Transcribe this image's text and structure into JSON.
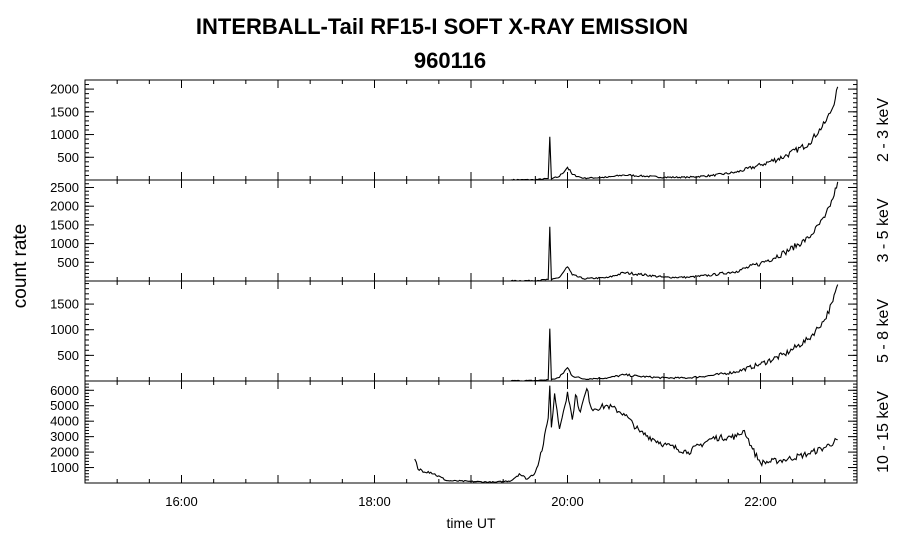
{
  "chart_data": {
    "type": "line",
    "title": "INTERBALL-Tail RF15-I SOFT X-RAY EMISSION",
    "subtitle": "960116",
    "xlabel": "time UT",
    "ylabel": "count rate",
    "xlim": [
      "15:00",
      "23:00"
    ],
    "x_ticks": [
      "16:00",
      "18:00",
      "20:00",
      "22:00"
    ],
    "grid": false,
    "series": [
      {
        "name": "2 - 3 keV",
        "ylim": [
          0,
          2200
        ],
        "y_ticks": [
          500,
          1000,
          1500,
          2000
        ],
        "points": [
          [
            "19:25",
            5
          ],
          [
            "19:40",
            8
          ],
          [
            "19:48",
            30
          ],
          [
            "19:49",
            950
          ],
          [
            "19:50",
            25
          ],
          [
            "19:55",
            80
          ],
          [
            "20:00",
            280
          ],
          [
            "20:03",
            120
          ],
          [
            "20:10",
            40
          ],
          [
            "20:25",
            60
          ],
          [
            "20:35",
            110
          ],
          [
            "20:45",
            90
          ],
          [
            "21:00",
            60
          ],
          [
            "21:15",
            60
          ],
          [
            "21:30",
            100
          ],
          [
            "21:45",
            170
          ],
          [
            "22:00",
            330
          ],
          [
            "22:15",
            520
          ],
          [
            "22:30",
            800
          ],
          [
            "22:40",
            1250
          ],
          [
            "22:45",
            1600
          ],
          [
            "22:48",
            2050
          ]
        ]
      },
      {
        "name": "3 - 5 keV",
        "ylim": [
          0,
          2700
        ],
        "y_ticks": [
          500,
          1000,
          1500,
          2000,
          2500
        ],
        "points": [
          [
            "19:25",
            5
          ],
          [
            "19:40",
            10
          ],
          [
            "19:48",
            40
          ],
          [
            "19:49",
            1450
          ],
          [
            "19:50",
            30
          ],
          [
            "19:55",
            100
          ],
          [
            "20:00",
            380
          ],
          [
            "20:03",
            160
          ],
          [
            "20:10",
            60
          ],
          [
            "20:25",
            90
          ],
          [
            "20:35",
            220
          ],
          [
            "20:45",
            180
          ],
          [
            "21:00",
            100
          ],
          [
            "21:15",
            100
          ],
          [
            "21:30",
            160
          ],
          [
            "21:45",
            260
          ],
          [
            "22:00",
            470
          ],
          [
            "22:15",
            760
          ],
          [
            "22:30",
            1150
          ],
          [
            "22:40",
            1700
          ],
          [
            "22:45",
            2200
          ],
          [
            "22:48",
            2650
          ]
        ]
      },
      {
        "name": "5 - 8 keV",
        "ylim": [
          0,
          1950
        ],
        "y_ticks": [
          500,
          1000,
          1500
        ],
        "points": [
          [
            "19:25",
            5
          ],
          [
            "19:40",
            8
          ],
          [
            "19:48",
            25
          ],
          [
            "19:49",
            1020
          ],
          [
            "19:50",
            25
          ],
          [
            "19:55",
            70
          ],
          [
            "20:00",
            260
          ],
          [
            "20:03",
            100
          ],
          [
            "20:10",
            40
          ],
          [
            "20:25",
            60
          ],
          [
            "20:35",
            120
          ],
          [
            "20:45",
            90
          ],
          [
            "21:00",
            60
          ],
          [
            "21:15",
            60
          ],
          [
            "21:30",
            110
          ],
          [
            "21:45",
            180
          ],
          [
            "22:00",
            330
          ],
          [
            "22:15",
            520
          ],
          [
            "22:30",
            820
          ],
          [
            "22:40",
            1200
          ],
          [
            "22:45",
            1550
          ],
          [
            "22:48",
            1880
          ]
        ]
      },
      {
        "name": "10 - 15 keV",
        "ylim": [
          0,
          6600
        ],
        "y_ticks": [
          1000,
          2000,
          3000,
          4000,
          5000,
          6000
        ],
        "points": [
          [
            "18:25",
            1550
          ],
          [
            "18:27",
            900
          ],
          [
            "18:35",
            700
          ],
          [
            "18:45",
            150
          ],
          [
            "19:00",
            100
          ],
          [
            "19:15",
            50
          ],
          [
            "19:25",
            150
          ],
          [
            "19:30",
            600
          ],
          [
            "19:35",
            250
          ],
          [
            "19:40",
            700
          ],
          [
            "19:45",
            2500
          ],
          [
            "19:48",
            4200
          ],
          [
            "19:49",
            6300
          ],
          [
            "19:50",
            3600
          ],
          [
            "19:52",
            5800
          ],
          [
            "19:55",
            3500
          ],
          [
            "20:00",
            5900
          ],
          [
            "20:03",
            4100
          ],
          [
            "20:05",
            5700
          ],
          [
            "20:08",
            4600
          ],
          [
            "20:12",
            6100
          ],
          [
            "20:15",
            4800
          ],
          [
            "20:25",
            5000
          ],
          [
            "20:35",
            4500
          ],
          [
            "20:45",
            3300
          ],
          [
            "21:00",
            2500
          ],
          [
            "21:15",
            2000
          ],
          [
            "21:30",
            2900
          ],
          [
            "21:45",
            3000
          ],
          [
            "21:50",
            3400
          ],
          [
            "21:55",
            2200
          ],
          [
            "22:00",
            1300
          ],
          [
            "22:15",
            1500
          ],
          [
            "22:30",
            1900
          ],
          [
            "22:40",
            2300
          ],
          [
            "22:48",
            2800
          ]
        ]
      }
    ]
  }
}
